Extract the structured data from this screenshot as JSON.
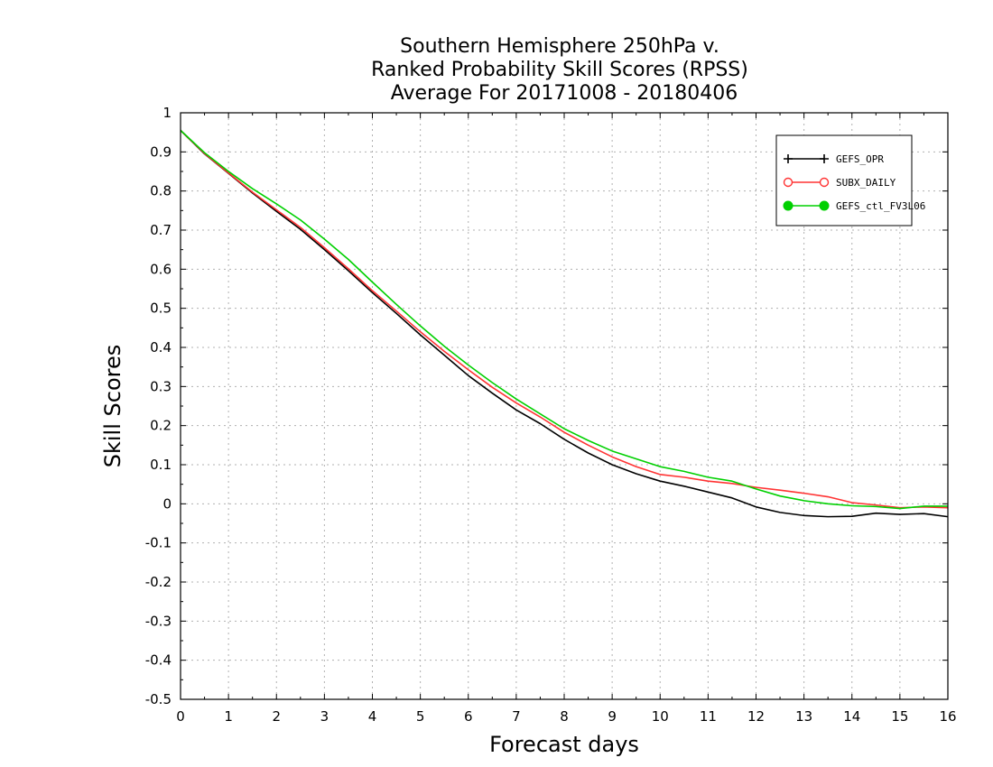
{
  "chart_data": {
    "type": "line",
    "title_lines": [
      "Southern Hemisphere 250hPa v.",
      "Ranked Probability Skill Scores (RPSS)",
      "Average For 20171008 - 20180406"
    ],
    "xlabel": "Forecast days",
    "ylabel": "Skill Scores",
    "xlim": [
      0,
      16
    ],
    "ylim": [
      -0.5,
      1
    ],
    "x_ticks": [
      "0",
      "1",
      "2",
      "3",
      "4",
      "5",
      "6",
      "7",
      "8",
      "9",
      "10",
      "11",
      "12",
      "13",
      "14",
      "15",
      "16"
    ],
    "y_ticks": [
      "1",
      "0.9",
      "0.8",
      "0.7",
      "0.6",
      "0.5",
      "0.4",
      "0.3",
      "0.2",
      "0.1",
      "0",
      "-0.1",
      "-0.2",
      "-0.3",
      "-0.4",
      "-0.5"
    ],
    "grid": true,
    "legend_position": "top-right",
    "x": [
      0,
      0.5,
      1,
      1.5,
      2,
      2.5,
      3,
      3.5,
      4,
      4.5,
      5,
      5.5,
      6,
      6.5,
      7,
      7.5,
      8,
      8.5,
      9,
      9.5,
      10,
      10.5,
      11,
      11.5,
      12,
      12.5,
      13,
      13.5,
      14,
      14.5,
      15,
      15.5,
      16
    ],
    "series": [
      {
        "name": "GEFS_OPR",
        "color": "#000000",
        "marker": "plus",
        "values": [
          0.955,
          0.895,
          0.845,
          0.795,
          0.748,
          0.702,
          0.65,
          0.596,
          0.54,
          0.487,
          0.432,
          0.38,
          0.328,
          0.283,
          0.24,
          0.205,
          0.165,
          0.13,
          0.1,
          0.077,
          0.058,
          0.045,
          0.03,
          0.015,
          -0.008,
          -0.022,
          -0.03,
          -0.033,
          -0.032,
          -0.024,
          -0.027,
          -0.025,
          -0.033
        ]
      },
      {
        "name": "SUBX_DAILY",
        "color": "#ff3333",
        "marker": "open-circle",
        "values": [
          0.955,
          0.896,
          0.846,
          0.797,
          0.752,
          0.707,
          0.655,
          0.601,
          0.545,
          0.493,
          0.44,
          0.39,
          0.343,
          0.298,
          0.258,
          0.222,
          0.183,
          0.15,
          0.12,
          0.095,
          0.075,
          0.068,
          0.058,
          0.052,
          0.042,
          0.035,
          0.027,
          0.018,
          0.003,
          -0.003,
          -0.01,
          -0.008,
          -0.01
        ]
      },
      {
        "name": "GEFS_ctl_FV3L06",
        "color": "#00d000",
        "marker": "filled-circle",
        "values": [
          0.955,
          0.898,
          0.85,
          0.806,
          0.767,
          0.726,
          0.677,
          0.625,
          0.567,
          0.51,
          0.455,
          0.403,
          0.355,
          0.31,
          0.268,
          0.23,
          0.192,
          0.162,
          0.135,
          0.115,
          0.095,
          0.083,
          0.068,
          0.058,
          0.038,
          0.02,
          0.008,
          0.0,
          -0.005,
          -0.007,
          -0.012,
          -0.006,
          -0.006
        ]
      }
    ]
  }
}
